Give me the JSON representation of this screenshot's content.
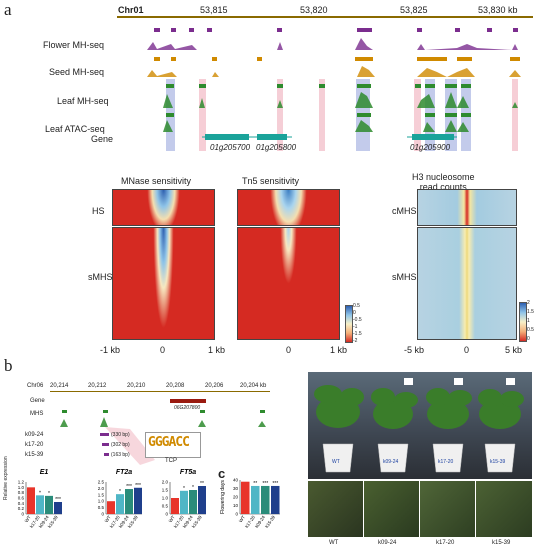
{
  "panel_a": {
    "letter": "a",
    "browser": {
      "chrom": "Chr01",
      "coords": [
        "53,815",
        "53,820",
        "53,825",
        "53,830 kb"
      ],
      "tracks": [
        "Flower MH-seq",
        "Seed MH-seq",
        "Leaf MH-seq",
        "Leaf ATAC-seq"
      ],
      "gene_label": "Gene",
      "genes": [
        "01g205700",
        "01g205800",
        "01g205900"
      ],
      "colors": {
        "flower": "#7b2d8e",
        "seed": "#d08a00",
        "leaf": "#2e8b2e",
        "atac": "#2e8b2e",
        "gene": "#1aa39a",
        "hs_box": "#b9c2e8",
        "mhs_box": "#f4c6cf"
      }
    },
    "heatmaps": {
      "titles": [
        "MNase sensitivity",
        "Tn5 sensitivity",
        "H3 nucleosome\nread counts"
      ],
      "row_labels_left": [
        "HS",
        "sMHS"
      ],
      "row_labels_right": [
        "cMHS",
        "sMHS"
      ],
      "x_ticks_left": [
        "-1 kb",
        "0",
        "1 kb"
      ],
      "x_ticks_mid": [
        "0",
        "1 kb"
      ],
      "x_ticks_right": [
        "-5 kb",
        "0",
        "5 kb"
      ],
      "colorbar_left": [
        "0.5",
        "0",
        "-0.5",
        "-1",
        "-1.5",
        "-2"
      ],
      "colorbar_right": [
        "2",
        "1.5",
        "1",
        "0.5",
        "0"
      ]
    }
  },
  "panel_b": {
    "letter": "b",
    "browser": {
      "chrom": "Chr06",
      "coords": [
        "20,214",
        "20,212",
        "20,210",
        "20,208",
        "20,206",
        "20,204 kb"
      ],
      "gene_label": "Gene",
      "gene_name": "06G207800",
      "mhs_label": "MHS",
      "lines": [
        {
          "name": "k09-24",
          "del": "(330 bp)"
        },
        {
          "name": "k17-20",
          "del": "(302 bp)"
        },
        {
          "name": "k15-39",
          "del": "(163 bp)"
        }
      ],
      "motif": "TCP",
      "motif_seq": "GGGACC"
    },
    "expression": {
      "ylabel": "Relative expression",
      "genotypes": [
        "WT",
        "k17-20",
        "k09-24",
        "k15-39"
      ],
      "colors": [
        "#e8342a",
        "#4fb6c6",
        "#2a8c7a",
        "#1f3f8c"
      ],
      "genes": [
        {
          "name": "E1",
          "values": [
            1.0,
            0.7,
            0.68,
            0.45
          ],
          "ylim": [
            0,
            1.2
          ],
          "ticks": [
            "0",
            "0.2",
            "0.4",
            "0.6",
            "0.8",
            "1.0",
            "1.2"
          ],
          "stars": [
            "",
            "*",
            "*",
            "***"
          ]
        },
        {
          "name": "FT2a",
          "values": [
            1.0,
            1.55,
            1.95,
            2.05
          ],
          "ylim": [
            0,
            2.5
          ],
          "ticks": [
            "0",
            "0.5",
            "1.0",
            "1.5",
            "2.0",
            "2.5"
          ],
          "stars": [
            "",
            "*",
            "***",
            "***"
          ]
        },
        {
          "name": "FT5a",
          "values": [
            1.0,
            1.45,
            1.5,
            1.75
          ],
          "ylim": [
            0,
            2.0
          ],
          "ticks": [
            "0",
            "0.5",
            "1.0",
            "1.5",
            "2.0"
          ],
          "stars": [
            "",
            "*",
            "*",
            "**"
          ]
        }
      ]
    },
    "flowering": {
      "letter": "c",
      "ylabel": "Flowering days",
      "values": [
        38,
        33,
        33,
        33
      ],
      "ticks": [
        "0",
        "10",
        "20",
        "30",
        "40"
      ],
      "stars": [
        "",
        "**",
        "***",
        "***"
      ]
    },
    "photo_labels": [
      "WT",
      "k09-24",
      "k17-20",
      "k15-39"
    ],
    "closeup_labels": [
      "WT",
      "k09-24",
      "k17-20",
      "k15-39"
    ]
  }
}
